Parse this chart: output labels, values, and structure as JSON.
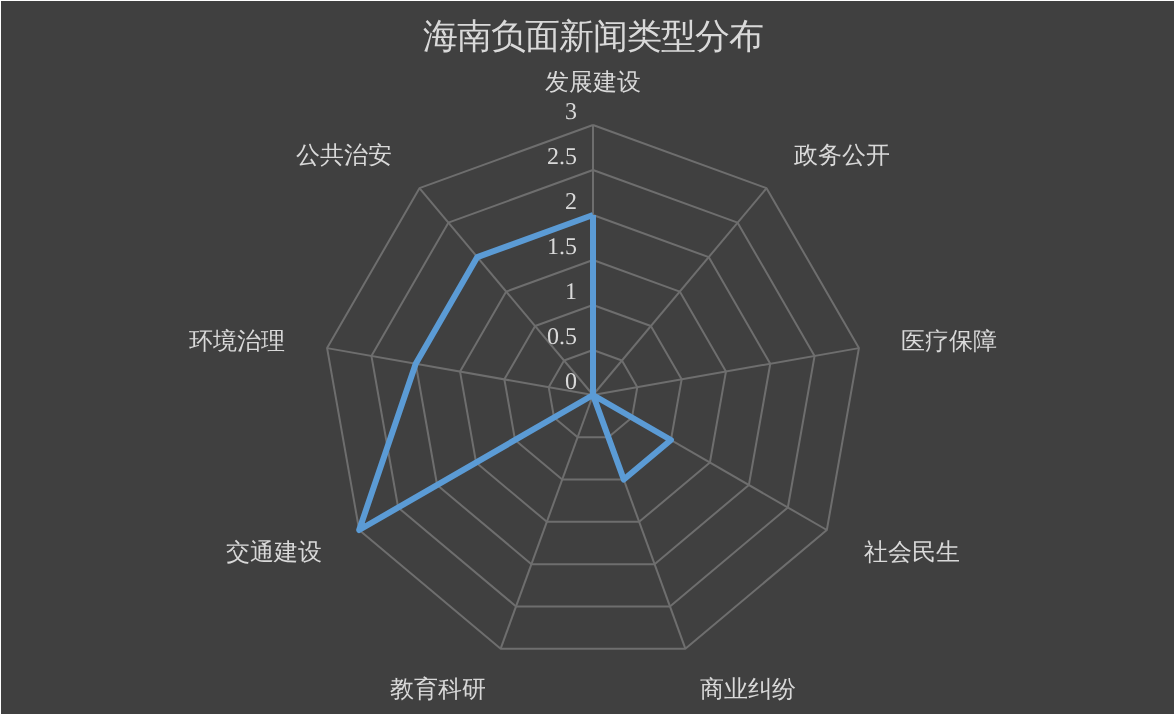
{
  "chart_data": {
    "type": "radar",
    "title": "海南负面新闻类型分布",
    "categories": [
      "发展建设",
      "政务公开",
      "医疗保障",
      "社会民生",
      "商业纠纷",
      "教育科研",
      "交通建设",
      "环境治理",
      "公共治安"
    ],
    "series": [
      {
        "color": "#5b9bd5",
        "values": [
          2,
          0,
          0,
          1,
          1,
          0,
          3,
          2,
          2
        ]
      }
    ],
    "ylim": [
      0,
      3
    ],
    "yticks": [
      0,
      0.5,
      1,
      1.5,
      2,
      2.5,
      3
    ],
    "grid": true
  }
}
